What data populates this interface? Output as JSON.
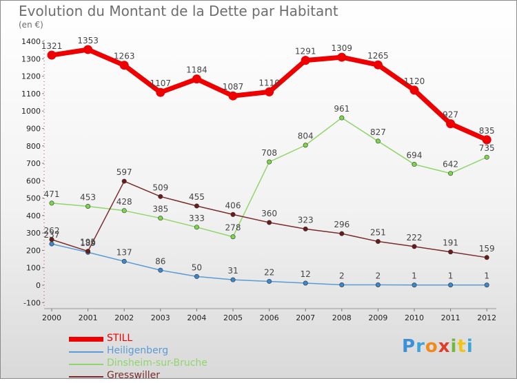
{
  "header": {
    "title": "Evolution du Montant de la Dette par Habitant",
    "subtitle": "(en €)"
  },
  "logo": {
    "text": "Proxiti",
    "colors": [
      "#3b8fd6",
      "#3aa6d8",
      "#f08a1c",
      "#e23b2a",
      "#74b83b",
      "#f0c419",
      "#3aa6d8"
    ]
  },
  "chart_data": {
    "type": "line",
    "title": "Evolution du Montant de la Dette par Habitant",
    "subtitle": "(en €)",
    "xlabel": "",
    "ylabel": "",
    "x": [
      "2000",
      "2001",
      "2002",
      "2003",
      "2004",
      "2005",
      "2006",
      "2007",
      "2008",
      "2009",
      "2010",
      "2011",
      "2012"
    ],
    "ylim": [
      -100,
      1400
    ],
    "yticks": [
      -100,
      0,
      100,
      200,
      300,
      400,
      500,
      600,
      700,
      800,
      900,
      1000,
      1100,
      1200,
      1300,
      1400
    ],
    "grid": false,
    "legend": "bottom-left",
    "series": [
      {
        "name": "STILL",
        "color": "#ee0000",
        "values": [
          1321,
          1353,
          1263,
          1107,
          1184,
          1087,
          1110,
          1291,
          1309,
          1265,
          1120,
          927,
          835
        ],
        "labels": [
          "1321",
          "1353",
          "1263",
          "1107",
          "1184",
          "1087",
          "1110",
          "1291",
          "1309",
          "1265",
          "1120",
          "927",
          "835"
        ]
      },
      {
        "name": "Heiligenberg",
        "color": "#4a90d9",
        "values": [
          237,
          189,
          137,
          86,
          50,
          31,
          22,
          12,
          2,
          2,
          1,
          1,
          1
        ],
        "labels": [
          "237",
          "189",
          "137",
          "86",
          "50",
          "31",
          "22",
          "12",
          "2",
          "2",
          "1",
          "1",
          "1"
        ]
      },
      {
        "name": "Dinsheim-sur-Bruche",
        "color": "#7cd64a",
        "values": [
          471,
          453,
          428,
          385,
          333,
          278,
          708,
          804,
          961,
          827,
          694,
          642,
          735
        ],
        "labels": [
          "471",
          "453",
          "428",
          "385",
          "333",
          "278",
          "708",
          "804",
          "961",
          "827",
          "694",
          "642",
          "735"
        ]
      },
      {
        "name": "Gresswiller",
        "color": "#6b1a1a",
        "values": [
          262,
          195,
          597,
          509,
          455,
          406,
          360,
          323,
          296,
          251,
          222,
          191,
          159
        ],
        "labels": [
          "262",
          "195",
          "597",
          "509",
          "455",
          "406",
          "360",
          "323",
          "296",
          "251",
          "222",
          "191",
          "159"
        ]
      }
    ]
  }
}
